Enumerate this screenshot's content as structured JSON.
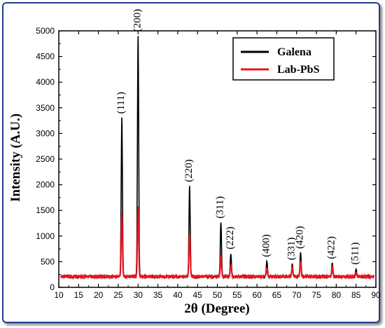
{
  "chart_data": {
    "type": "line",
    "xlabel": "2θ (Degree)",
    "ylabel": "Intensity (A.U.)",
    "xlim": [
      10,
      90
    ],
    "ylim": [
      0,
      5000
    ],
    "xticks": [
      10,
      15,
      20,
      25,
      30,
      35,
      40,
      45,
      50,
      55,
      60,
      65,
      70,
      75,
      80,
      85,
      90
    ],
    "yticks": [
      0,
      500,
      1000,
      1500,
      2000,
      2500,
      3000,
      3500,
      4000,
      4500,
      5000
    ],
    "grid": false,
    "legend_position": "top-right",
    "baseline": 210,
    "series": [
      {
        "name": "Galena",
        "color": "#000000",
        "peaks": [
          {
            "x": 25.9,
            "y": 3300
          },
          {
            "x": 30.0,
            "y": 4900
          },
          {
            "x": 43.0,
            "y": 1970
          },
          {
            "x": 50.9,
            "y": 1260
          },
          {
            "x": 53.4,
            "y": 660
          },
          {
            "x": 62.5,
            "y": 510
          },
          {
            "x": 68.9,
            "y": 450
          },
          {
            "x": 71.0,
            "y": 670
          },
          {
            "x": 79.0,
            "y": 470
          },
          {
            "x": 85.0,
            "y": 360
          }
        ]
      },
      {
        "name": "Lab-PbS",
        "color": "#e8141e",
        "peaks": [
          {
            "x": 25.9,
            "y": 1460
          },
          {
            "x": 30.0,
            "y": 1580
          },
          {
            "x": 43.0,
            "y": 1050
          },
          {
            "x": 50.9,
            "y": 620
          },
          {
            "x": 53.4,
            "y": 450
          },
          {
            "x": 62.5,
            "y": 380
          },
          {
            "x": 68.9,
            "y": 390
          },
          {
            "x": 71.0,
            "y": 500
          },
          {
            "x": 79.0,
            "y": 400
          },
          {
            "x": 85.0,
            "y": 300
          }
        ]
      }
    ],
    "annotations": [
      {
        "text": "(111)",
        "x": 25.9,
        "y": 3300
      },
      {
        "text": "(200)",
        "x": 30.0,
        "y": 4900
      },
      {
        "text": "(220)",
        "x": 43.0,
        "y": 1970
      },
      {
        "text": "(311)",
        "x": 50.9,
        "y": 1260
      },
      {
        "text": "(222)",
        "x": 53.4,
        "y": 660
      },
      {
        "text": "(400)",
        "x": 62.5,
        "y": 510
      },
      {
        "text": "(331)",
        "x": 68.9,
        "y": 450
      },
      {
        "text": "(420)",
        "x": 71.0,
        "y": 670
      },
      {
        "text": "(422)",
        "x": 79.0,
        "y": 470
      },
      {
        "text": "(511)",
        "x": 85.0,
        "y": 360
      }
    ]
  }
}
